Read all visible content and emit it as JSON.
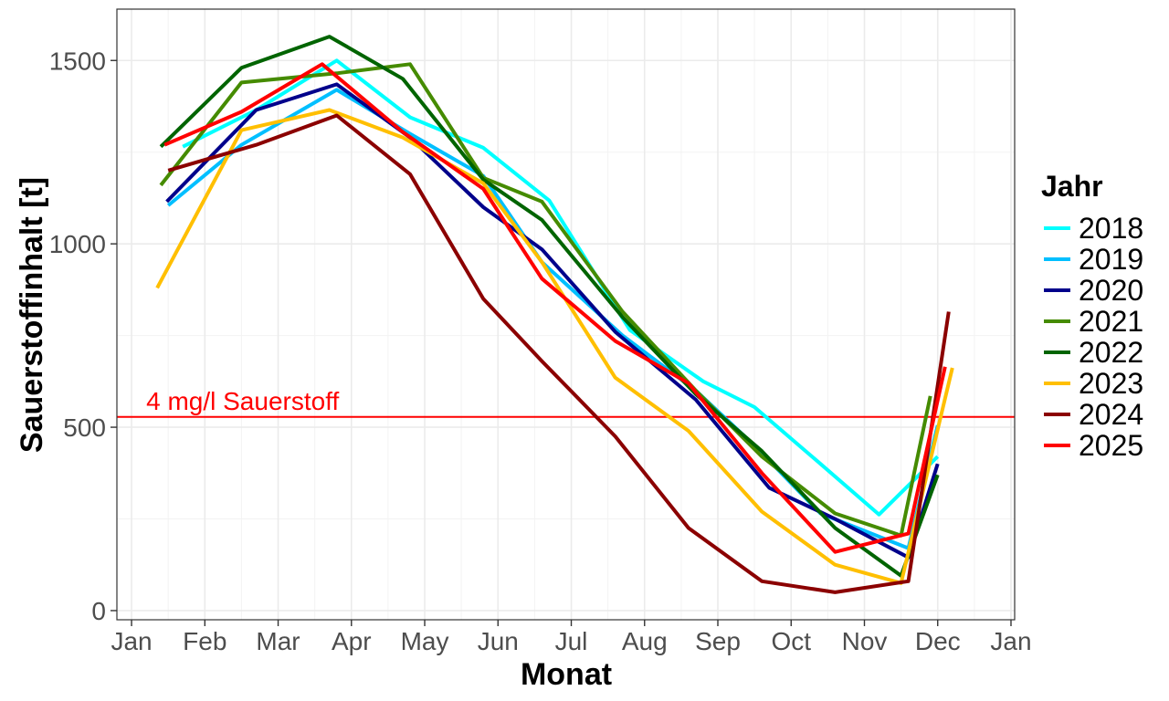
{
  "chart_data": {
    "type": "line",
    "xlabel": "Monat",
    "ylabel": "Sauerstoffinhalt [t]",
    "x_ticks": [
      "Jan",
      "Feb",
      "Mar",
      "Apr",
      "May",
      "Jun",
      "Jul",
      "Aug",
      "Sep",
      "Oct",
      "Nov",
      "Dec",
      "Jan"
    ],
    "y_ticks": [
      "0",
      "500",
      "1000",
      "1500"
    ],
    "x_range": [
      -0.2,
      12.05
    ],
    "ylim": [
      -25,
      1640
    ],
    "grid": true,
    "legend": {
      "title": "Jahr",
      "position": "right"
    },
    "reference_line": {
      "y": 528,
      "label": "4 mg/l Sauerstoff",
      "color": "#ff0000"
    },
    "series": [
      {
        "name": "2018",
        "color": "#00ffff",
        "x": [
          0.7,
          1.7,
          2.8,
          3.8,
          4.8,
          5.7,
          6.8,
          7.8,
          8.5,
          9.4,
          10.2,
          11.0
        ],
        "y": [
          1265,
          1365,
          1500,
          1345,
          1262,
          1118,
          765,
          625,
          555,
          400,
          262,
          420
        ]
      },
      {
        "name": "2019",
        "color": "#00bfff",
        "x": [
          0.5,
          1.5,
          2.8,
          3.8,
          4.8,
          5.6,
          6.7,
          7.7,
          8.5,
          9.4,
          10.6,
          11.0
        ],
        "y": [
          1105,
          1270,
          1420,
          1300,
          1185,
          950,
          750,
          600,
          450,
          265,
          170,
          505
        ]
      },
      {
        "name": "2020",
        "color": "#00008b",
        "x": [
          0.48,
          1.7,
          2.8,
          3.8,
          4.8,
          5.6,
          6.6,
          7.7,
          8.7,
          9.6,
          10.6,
          11.0
        ],
        "y": [
          1115,
          1365,
          1435,
          1290,
          1100,
          985,
          760,
          575,
          335,
          250,
          145,
          400
        ]
      },
      {
        "name": "2021",
        "color": "#458b00",
        "x": [
          0.4,
          1.5,
          2.8,
          3.8,
          4.8,
          5.6,
          6.7,
          7.7,
          8.6,
          9.6,
          10.5,
          10.9
        ],
        "y": [
          1160,
          1440,
          1465,
          1490,
          1180,
          1115,
          815,
          600,
          420,
          265,
          205,
          585
        ]
      },
      {
        "name": "2022",
        "color": "#006400",
        "x": [
          0.4,
          1.5,
          2.7,
          3.7,
          4.8,
          5.6,
          6.7,
          7.7,
          8.6,
          9.6,
          10.5,
          11.0
        ],
        "y": [
          1265,
          1480,
          1565,
          1450,
          1175,
          1065,
          800,
          590,
          435,
          225,
          95,
          370
        ]
      },
      {
        "name": "2023",
        "color": "#ffbf00",
        "x": [
          0.35,
          1.5,
          2.7,
          3.7,
          4.8,
          5.6,
          6.6,
          7.6,
          8.6,
          9.6,
          10.5,
          11.2
        ],
        "y": [
          880,
          1310,
          1365,
          1290,
          1165,
          950,
          635,
          490,
          270,
          125,
          75,
          662
        ]
      },
      {
        "name": "2024",
        "color": "#8b0000",
        "x": [
          0.5,
          1.7,
          2.8,
          3.8,
          4.8,
          5.6,
          6.6,
          7.6,
          8.6,
          9.6,
          10.6,
          11.15
        ],
        "y": [
          1200,
          1270,
          1350,
          1190,
          850,
          680,
          475,
          225,
          80,
          50,
          80,
          815
        ]
      },
      {
        "name": "2025",
        "color": "#ff0000",
        "x": [
          0.45,
          1.5,
          2.6,
          3.7,
          4.8,
          5.6,
          6.6,
          7.6,
          8.6,
          9.6,
          10.6,
          11.1
        ],
        "y": [
          1270,
          1360,
          1490,
          1305,
          1150,
          905,
          735,
          620,
          375,
          160,
          210,
          665
        ]
      }
    ]
  }
}
